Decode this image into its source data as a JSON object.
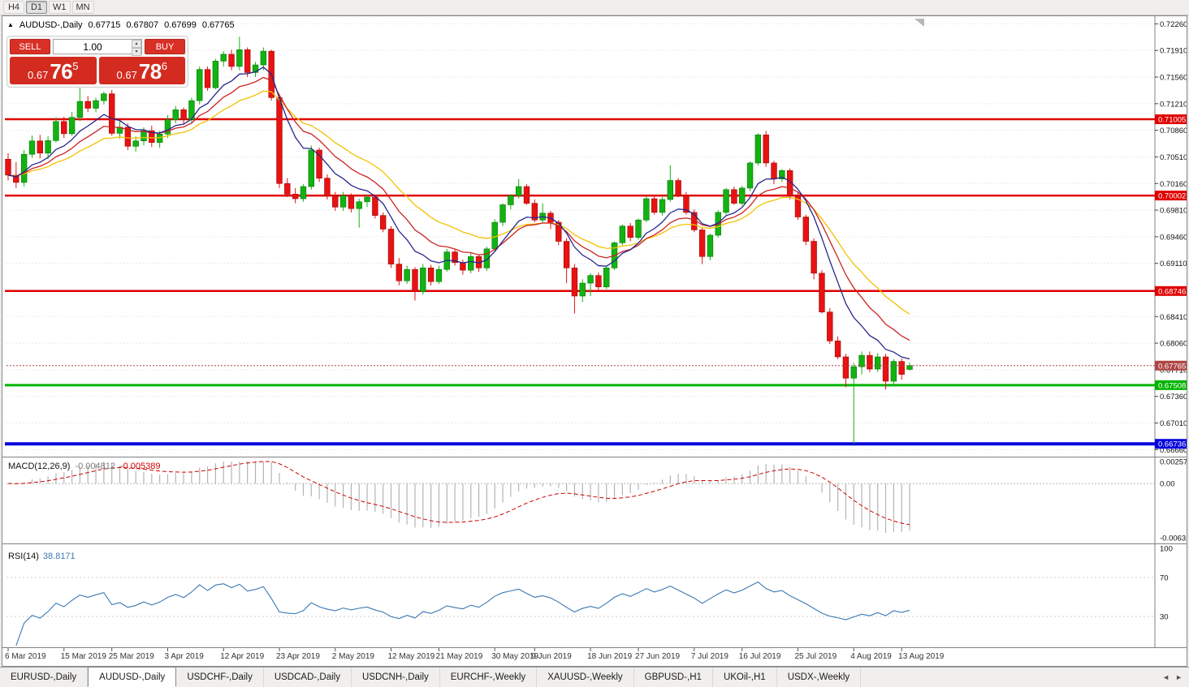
{
  "toolbar": {
    "timeframes": [
      "H4",
      "D1",
      "W1",
      "MN"
    ],
    "active": "D1"
  },
  "chart_header": {
    "marker": "▲",
    "symbol": "AUDUSD-,Daily",
    "open": "0.67715",
    "high": "0.67807",
    "low": "0.67699",
    "close": "0.67765"
  },
  "one_click": {
    "sell_label": "SELL",
    "buy_label": "BUY",
    "volume": "1.00",
    "sell_price": {
      "base": "0.67",
      "big": "76",
      "pip": "5"
    },
    "buy_price": {
      "base": "0.67",
      "big": "78",
      "pip": "6"
    }
  },
  "icons": {
    "spin_up": "▴",
    "spin_down": "▾",
    "tab_left": "◄",
    "tab_right": "►"
  },
  "chart_data": {
    "type": "candlestick",
    "symbol": "AUDUSD",
    "timeframe": "Daily",
    "bull_color": "#12b212",
    "bear_color": "#e81212",
    "price_axis": {
      "min": 0.66589,
      "max": 0.72339,
      "tick_labels": [
        "0.72260",
        "0.71910",
        "0.71560",
        "0.71210",
        "0.70860",
        "0.70510",
        "0.70160",
        "0.69810",
        "0.69460",
        "0.69110",
        "0.68760",
        "0.68410",
        "0.68060",
        "0.67710",
        "0.67360",
        "0.67010",
        "0.66660"
      ]
    },
    "hlines": [
      {
        "price": 0.71005,
        "label": "0.71005",
        "color": "#e00000",
        "width": 2.5
      },
      {
        "price": 0.70002,
        "label": "0.70002",
        "color": "#e00000",
        "width": 2.5
      },
      {
        "price": 0.68746,
        "label": "0.68746",
        "color": "#e00000",
        "width": 2.5
      },
      {
        "price": 0.67508,
        "label": "0.67508",
        "color": "#00b400",
        "width": 3
      },
      {
        "price": 0.66736,
        "label": "0.66736",
        "color": "#0000dd",
        "width": 4
      }
    ],
    "current_price": {
      "price": 0.67765,
      "label": "0.67765",
      "badge_color": "#b04545"
    },
    "moving_averages": [
      {
        "period": 21,
        "type": "ema",
        "color": "#f2c200",
        "name": "ma-slow-line"
      },
      {
        "period": 13,
        "type": "ema",
        "color": "#cc2222",
        "name": "ma-medium-line"
      },
      {
        "period": 8,
        "type": "ema",
        "color": "#26268c",
        "name": "ma-fast-line"
      }
    ],
    "date_labels": [
      {
        "label": "6 Mar 2019",
        "index": 0
      },
      {
        "label": "15 Mar 2019",
        "index": 7
      },
      {
        "label": "25 Mar 2019",
        "index": 13
      },
      {
        "label": "3 Apr 2019",
        "index": 20
      },
      {
        "label": "12 Apr 2019",
        "index": 27
      },
      {
        "label": "23 Apr 2019",
        "index": 34
      },
      {
        "label": "2 May 2019",
        "index": 41
      },
      {
        "label": "12 May 2019",
        "index": 48
      },
      {
        "label": "21 May 2019",
        "index": 54
      },
      {
        "label": "30 May 2019",
        "index": 61
      },
      {
        "label": "9 Jun 2019",
        "index": 66
      },
      {
        "label": "18 Jun 2019",
        "index": 73
      },
      {
        "label": "27 Jun 2019",
        "index": 79
      },
      {
        "label": "7 Jul 2019",
        "index": 86
      },
      {
        "label": "16 Jul 2019",
        "index": 92
      },
      {
        "label": "25 Jul 2019",
        "index": 99
      },
      {
        "label": "4 Aug 2019",
        "index": 106
      },
      {
        "label": "13 Aug 2019",
        "index": 112
      }
    ],
    "candles": [
      [
        0.7048,
        0.7056,
        0.702,
        0.7027
      ],
      [
        0.7027,
        0.7044,
        0.701,
        0.70175
      ],
      [
        0.70175,
        0.706,
        0.7012,
        0.70545
      ],
      [
        0.70545,
        0.7079,
        0.705,
        0.7072
      ],
      [
        0.7072,
        0.708,
        0.7049,
        0.7056
      ],
      [
        0.7056,
        0.7078,
        0.7048,
        0.70725
      ],
      [
        0.70725,
        0.7103,
        0.707,
        0.70975
      ],
      [
        0.70975,
        0.7104,
        0.7076,
        0.70815
      ],
      [
        0.70815,
        0.711,
        0.7079,
        0.7103
      ],
      [
        0.7103,
        0.7142,
        0.7098,
        0.7124
      ],
      [
        0.7124,
        0.7131,
        0.711,
        0.7115
      ],
      [
        0.7115,
        0.7129,
        0.711,
        0.7125
      ],
      [
        0.7125,
        0.7137,
        0.712,
        0.7134
      ],
      [
        0.7134,
        0.7139,
        0.7079,
        0.7082
      ],
      [
        0.7082,
        0.7098,
        0.7075,
        0.709
      ],
      [
        0.709,
        0.7095,
        0.706,
        0.7065
      ],
      [
        0.7065,
        0.7078,
        0.7058,
        0.7072
      ],
      [
        0.7072,
        0.709,
        0.7066,
        0.70855
      ],
      [
        0.70855,
        0.7092,
        0.7064,
        0.707
      ],
      [
        0.707,
        0.7085,
        0.7063,
        0.7081
      ],
      [
        0.7081,
        0.7106,
        0.7076,
        0.71
      ],
      [
        0.71,
        0.7118,
        0.7095,
        0.7113
      ],
      [
        0.7113,
        0.7116,
        0.7094,
        0.71
      ],
      [
        0.71,
        0.7129,
        0.7096,
        0.7125
      ],
      [
        0.7125,
        0.717,
        0.712,
        0.7166
      ],
      [
        0.7166,
        0.717,
        0.7138,
        0.7142
      ],
      [
        0.7142,
        0.718,
        0.714,
        0.7177
      ],
      [
        0.7177,
        0.719,
        0.717,
        0.7186
      ],
      [
        0.7186,
        0.7192,
        0.7165,
        0.717
      ],
      [
        0.717,
        0.7209,
        0.7165,
        0.7192
      ],
      [
        0.7192,
        0.7195,
        0.7156,
        0.7162
      ],
      [
        0.7162,
        0.7176,
        0.7156,
        0.7172
      ],
      [
        0.7172,
        0.7195,
        0.7165,
        0.719
      ],
      [
        0.719,
        0.7192,
        0.7125,
        0.7129
      ],
      [
        0.7129,
        0.7133,
        0.701,
        0.7016
      ],
      [
        0.7016,
        0.7023,
        0.6998,
        0.7002
      ],
      [
        0.7002,
        0.701,
        0.699,
        0.6996
      ],
      [
        0.6996,
        0.7015,
        0.6992,
        0.7012
      ],
      [
        0.7012,
        0.7066,
        0.7008,
        0.706
      ],
      [
        0.706,
        0.7063,
        0.7018,
        0.7023
      ],
      [
        0.7023,
        0.7028,
        0.6995,
        0.7
      ],
      [
        0.7,
        0.7005,
        0.698,
        0.6985
      ],
      [
        0.6985,
        0.7005,
        0.698,
        0.7
      ],
      [
        0.7,
        0.7003,
        0.6978,
        0.6983
      ],
      [
        0.6983,
        0.6996,
        0.6958,
        0.6992
      ],
      [
        0.6992,
        0.7001,
        0.6985,
        0.6998
      ],
      [
        0.6998,
        0.7,
        0.697,
        0.6974
      ],
      [
        0.6974,
        0.6978,
        0.6952,
        0.6956
      ],
      [
        0.6956,
        0.696,
        0.6905,
        0.691
      ],
      [
        0.691,
        0.6918,
        0.6882,
        0.6888
      ],
      [
        0.6888,
        0.6908,
        0.6884,
        0.6903
      ],
      [
        0.6903,
        0.6906,
        0.6862,
        0.6874
      ],
      [
        0.6874,
        0.691,
        0.687,
        0.6905
      ],
      [
        0.6905,
        0.6909,
        0.6882,
        0.6887
      ],
      [
        0.6887,
        0.6908,
        0.6884,
        0.6903
      ],
      [
        0.6903,
        0.693,
        0.69,
        0.6926
      ],
      [
        0.6926,
        0.6929,
        0.6908,
        0.6912
      ],
      [
        0.6912,
        0.6916,
        0.6896,
        0.6902
      ],
      [
        0.6902,
        0.6925,
        0.6898,
        0.692
      ],
      [
        0.692,
        0.6923,
        0.69,
        0.6905
      ],
      [
        0.6905,
        0.6933,
        0.6901,
        0.693
      ],
      [
        0.693,
        0.6969,
        0.6928,
        0.6965
      ],
      [
        0.6965,
        0.699,
        0.696,
        0.6988
      ],
      [
        0.6988,
        0.7002,
        0.6982,
        0.7
      ],
      [
        0.7,
        0.7022,
        0.6996,
        0.7012
      ],
      [
        0.7012,
        0.7015,
        0.6988,
        0.699
      ],
      [
        0.699,
        0.6995,
        0.6965,
        0.6968
      ],
      [
        0.6968,
        0.699,
        0.6964,
        0.6977
      ],
      [
        0.6977,
        0.698,
        0.6956,
        0.6965
      ],
      [
        0.6965,
        0.6968,
        0.6935,
        0.694
      ],
      [
        0.694,
        0.6944,
        0.6885,
        0.6905
      ],
      [
        0.6905,
        0.691,
        0.6845,
        0.6868
      ],
      [
        0.6868,
        0.689,
        0.686,
        0.6885
      ],
      [
        0.6885,
        0.6898,
        0.6868,
        0.6895
      ],
      [
        0.6895,
        0.6899,
        0.6875,
        0.688
      ],
      [
        0.688,
        0.6908,
        0.6877,
        0.6905
      ],
      [
        0.6905,
        0.694,
        0.6902,
        0.6938
      ],
      [
        0.6938,
        0.6962,
        0.6935,
        0.696
      ],
      [
        0.696,
        0.6964,
        0.694,
        0.6945
      ],
      [
        0.6945,
        0.697,
        0.6942,
        0.6968
      ],
      [
        0.6968,
        0.6999,
        0.6965,
        0.6996
      ],
      [
        0.6996,
        0.7,
        0.6975,
        0.6978
      ],
      [
        0.6978,
        0.6998,
        0.6974,
        0.6995
      ],
      [
        0.6995,
        0.704,
        0.6992,
        0.702
      ],
      [
        0.702,
        0.7023,
        0.6998,
        0.7
      ],
      [
        0.7,
        0.7005,
        0.6975,
        0.6978
      ],
      [
        0.6978,
        0.6982,
        0.6952,
        0.6955
      ],
      [
        0.6955,
        0.6958,
        0.691,
        0.692
      ],
      [
        0.692,
        0.695,
        0.6915,
        0.6948
      ],
      [
        0.6948,
        0.6981,
        0.6945,
        0.6978
      ],
      [
        0.6978,
        0.701,
        0.6975,
        0.7008
      ],
      [
        0.7008,
        0.7012,
        0.6988,
        0.699
      ],
      [
        0.699,
        0.7013,
        0.6987,
        0.701
      ],
      [
        0.701,
        0.7045,
        0.7006,
        0.7043
      ],
      [
        0.7043,
        0.7082,
        0.704,
        0.708
      ],
      [
        0.708,
        0.7085,
        0.7038,
        0.7043
      ],
      [
        0.7043,
        0.7046,
        0.7015,
        0.7022
      ],
      [
        0.7022,
        0.7035,
        0.7018,
        0.7033
      ],
      [
        0.7033,
        0.7036,
        0.6995,
        0.7
      ],
      [
        0.7,
        0.7005,
        0.6968,
        0.6972
      ],
      [
        0.6972,
        0.6975,
        0.6935,
        0.694
      ],
      [
        0.694,
        0.6944,
        0.689,
        0.6898
      ],
      [
        0.6898,
        0.6902,
        0.6845,
        0.6847
      ],
      [
        0.6847,
        0.6852,
        0.6805,
        0.6809
      ],
      [
        0.6809,
        0.6815,
        0.6785,
        0.6788
      ],
      [
        0.6788,
        0.6792,
        0.6748,
        0.676
      ],
      [
        0.676,
        0.678,
        0.6673,
        0.6775
      ],
      [
        0.6775,
        0.6795,
        0.6765,
        0.679
      ],
      [
        0.679,
        0.6795,
        0.6768,
        0.6772
      ],
      [
        0.6772,
        0.6793,
        0.6768,
        0.6788
      ],
      [
        0.6788,
        0.6792,
        0.6745,
        0.6756
      ],
      [
        0.6756,
        0.6785,
        0.6752,
        0.6782
      ],
      [
        0.6782,
        0.6786,
        0.6758,
        0.6765
      ],
      [
        0.67715,
        0.67807,
        0.67699,
        0.67765
      ]
    ],
    "macd": {
      "name": "MACD(12,26,9)",
      "value": "-0.004812",
      "signal_value": "-0.005389",
      "fast": 12,
      "slow": 26,
      "signal": 9,
      "hist_color": "#b4b4b4",
      "signal_color": "#cc0000",
      "scale": [
        {
          "v": 0.002574,
          "label": "0.002574"
        },
        {
          "v": 0,
          "label": "0.00"
        },
        {
          "v": -0.006326,
          "label": "-0.006326"
        }
      ]
    },
    "rsi": {
      "name": "RSI(14)",
      "value": "38.8171",
      "period": 14,
      "color": "#3a78b4",
      "levels": [
        70,
        30
      ],
      "scale_labels": [
        {
          "v": 100,
          "label": "100"
        },
        {
          "v": 70,
          "label": "70"
        },
        {
          "v": 30,
          "label": "30"
        }
      ]
    }
  },
  "tabs": {
    "active_index": 1,
    "items": [
      "EURUSD-,Daily",
      "AUDUSD-,Daily",
      "USDCHF-,Daily",
      "USDCAD-,Daily",
      "USDCNH-,Daily",
      "EURCHF-,Weekly",
      "XAUUSD-,Weekly",
      "GBPUSD-,H1",
      "UKOil-,H1",
      "USDX-,Weekly"
    ]
  }
}
